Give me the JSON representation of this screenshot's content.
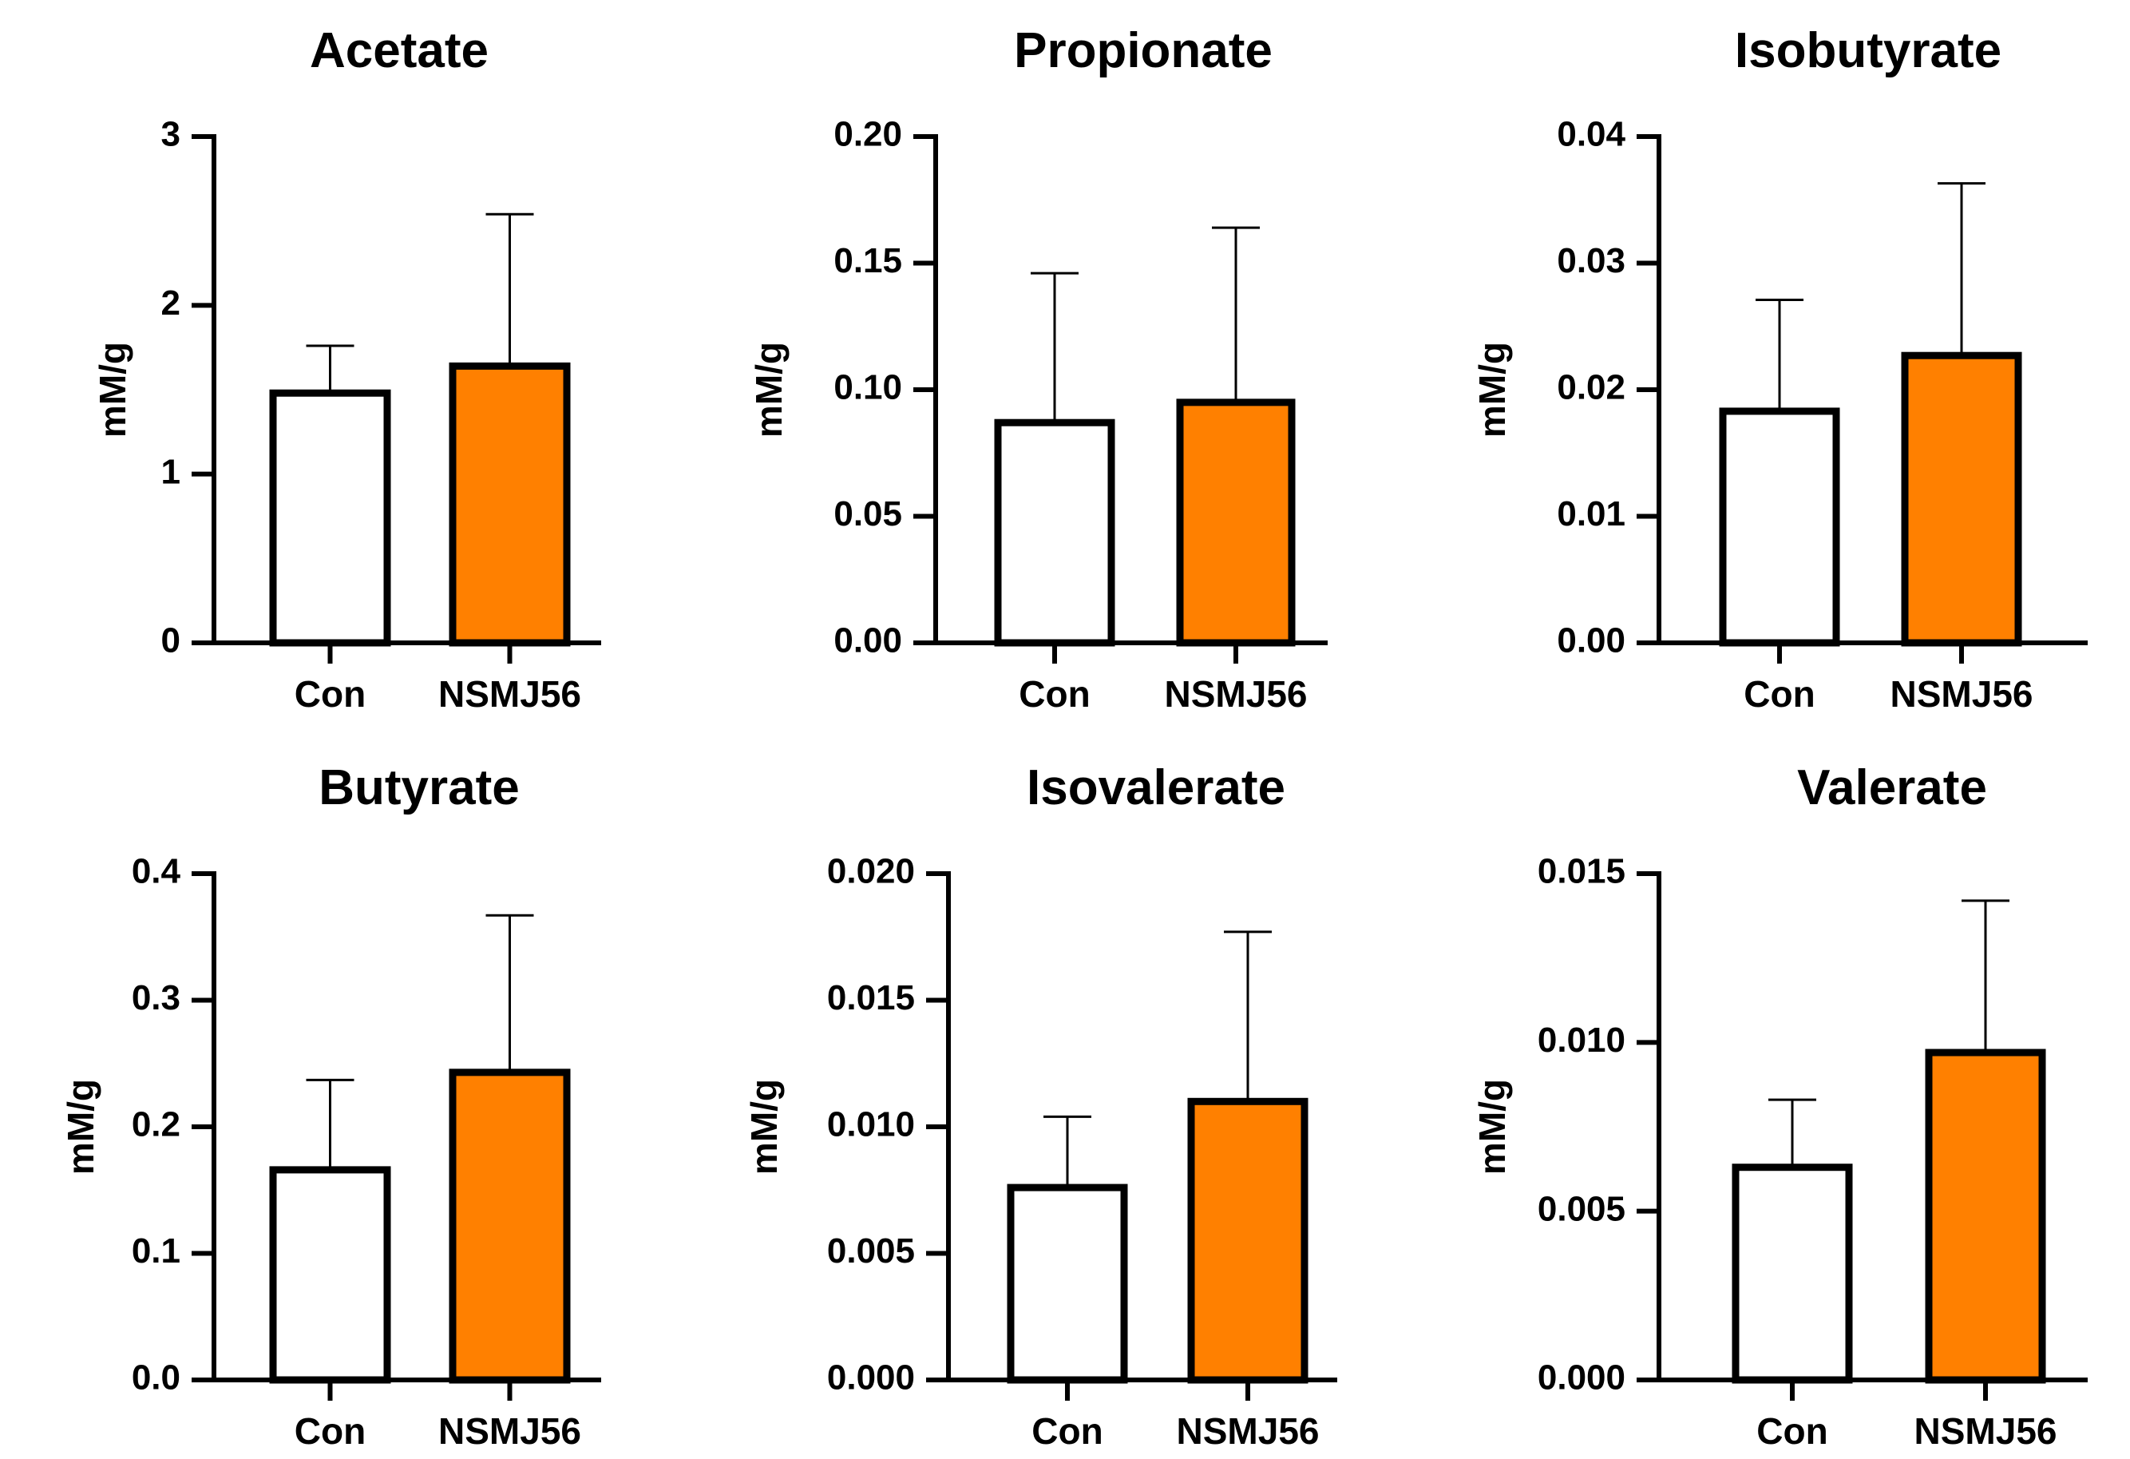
{
  "colors": {
    "control_fill": "#ffffff",
    "treatment_fill": "#ff8000",
    "stroke": "#000000"
  },
  "chart_data": [
    {
      "type": "bar",
      "title": "Acetate",
      "ylabel": "mM/g",
      "categories": [
        "Con",
        "NSMJ56"
      ],
      "values": [
        1.48,
        1.64
      ],
      "error_upper": [
        1.76,
        2.54
      ],
      "ylim": [
        0,
        3
      ],
      "yticks": [
        0,
        1,
        2,
        3
      ],
      "ytick_labels": [
        "0",
        "1",
        "2",
        "3"
      ]
    },
    {
      "type": "bar",
      "title": "Propionate",
      "ylabel": "mM/g",
      "categories": [
        "Con",
        "NSMJ56"
      ],
      "values": [
        0.087,
        0.095
      ],
      "error_upper": [
        0.146,
        0.164
      ],
      "ylim": [
        0,
        0.2
      ],
      "yticks": [
        0,
        0.05,
        0.1,
        0.15,
        0.2
      ],
      "ytick_labels": [
        "0.00",
        "0.05",
        "0.10",
        "0.15",
        "0.20"
      ]
    },
    {
      "type": "bar",
      "title": "Isobutyrate",
      "ylabel": "mM/g",
      "categories": [
        "Con",
        "NSMJ56"
      ],
      "values": [
        0.0183,
        0.0227
      ],
      "error_upper": [
        0.0271,
        0.0363
      ],
      "ylim": [
        0,
        0.04
      ],
      "yticks": [
        0,
        0.01,
        0.02,
        0.03,
        0.04
      ],
      "ytick_labels": [
        "0.00",
        "0.01",
        "0.02",
        "0.03",
        "0.04"
      ]
    },
    {
      "type": "bar",
      "title": "Butyrate",
      "ylabel": "mM/g",
      "categories": [
        "Con",
        "NSMJ56"
      ],
      "values": [
        0.166,
        0.243
      ],
      "error_upper": [
        0.237,
        0.367
      ],
      "ylim": [
        0,
        0.4
      ],
      "yticks": [
        0,
        0.1,
        0.2,
        0.3,
        0.4
      ],
      "ytick_labels": [
        "0.0",
        "0.1",
        "0.2",
        "0.3",
        "0.4"
      ]
    },
    {
      "type": "bar",
      "title": "Isovalerate",
      "ylabel": "mM/g",
      "categories": [
        "Con",
        "NSMJ56"
      ],
      "values": [
        0.0076,
        0.011
      ],
      "error_upper": [
        0.0104,
        0.0177
      ],
      "ylim": [
        0,
        0.02
      ],
      "yticks": [
        0,
        0.005,
        0.01,
        0.015,
        0.02
      ],
      "ytick_labels": [
        "0.000",
        "0.005",
        "0.010",
        "0.015",
        "0.020"
      ]
    },
    {
      "type": "bar",
      "title": "Valerate",
      "ylabel": "mM/g",
      "categories": [
        "Con",
        "NSMJ56"
      ],
      "values": [
        0.0063,
        0.0097
      ],
      "error_upper": [
        0.0083,
        0.0142
      ],
      "ylim": [
        0,
        0.015
      ],
      "yticks": [
        0,
        0.005,
        0.01,
        0.015
      ],
      "ytick_labels": [
        "0.000",
        "0.005",
        "0.010",
        "0.015"
      ]
    }
  ]
}
